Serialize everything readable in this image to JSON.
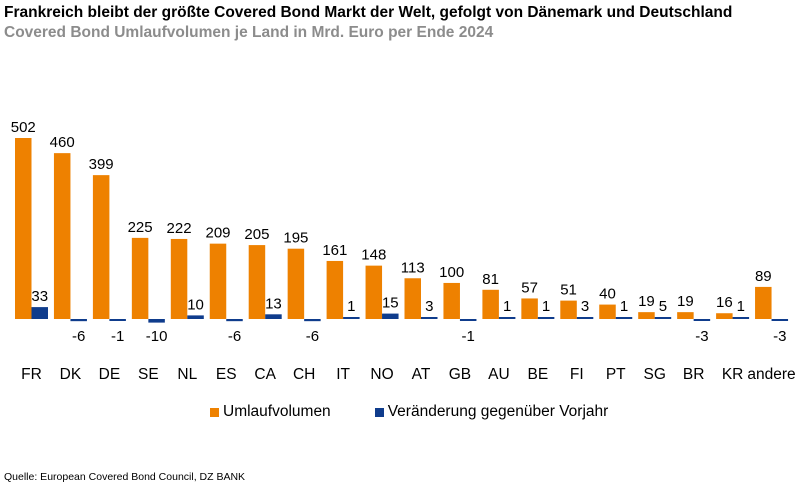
{
  "chart_data": {
    "type": "bar",
    "title": "Frankreich bleibt der größte Covered Bond Markt der Welt, gefolgt von Dänemark und Deutschland",
    "subtitle": "Covered Bond Umlaufvolumen je Land in Mrd. Euro per Ende 2024",
    "xlabel": "",
    "ylabel": "",
    "ylim": [
      -15,
      510
    ],
    "grid": false,
    "legend_position": "bottom",
    "categories": [
      "FR",
      "DK",
      "DE",
      "SE",
      "NL",
      "ES",
      "CA",
      "CH",
      "IT",
      "NO",
      "AT",
      "GB",
      "AU",
      "BE",
      "FI",
      "PT",
      "SG",
      "BR",
      "KR",
      "andere"
    ],
    "series": [
      {
        "name": "Umlaufvolumen",
        "color": "#EE8100",
        "values": [
          502,
          460,
          399,
          225,
          222,
          209,
          205,
          195,
          161,
          148,
          113,
          100,
          81,
          57,
          51,
          40,
          19,
          19,
          16,
          89
        ]
      },
      {
        "name": "Veränderung gegenüber Vorjahr",
        "color": "#0F3C8C",
        "values": [
          33,
          -6,
          -1,
          -10,
          10,
          -6,
          13,
          -6,
          1,
          15,
          3,
          -1,
          1,
          1,
          3,
          1,
          5,
          -3,
          1,
          -3
        ]
      }
    ],
    "source": "Quelle: European Covered Bond Council, DZ BANK"
  }
}
